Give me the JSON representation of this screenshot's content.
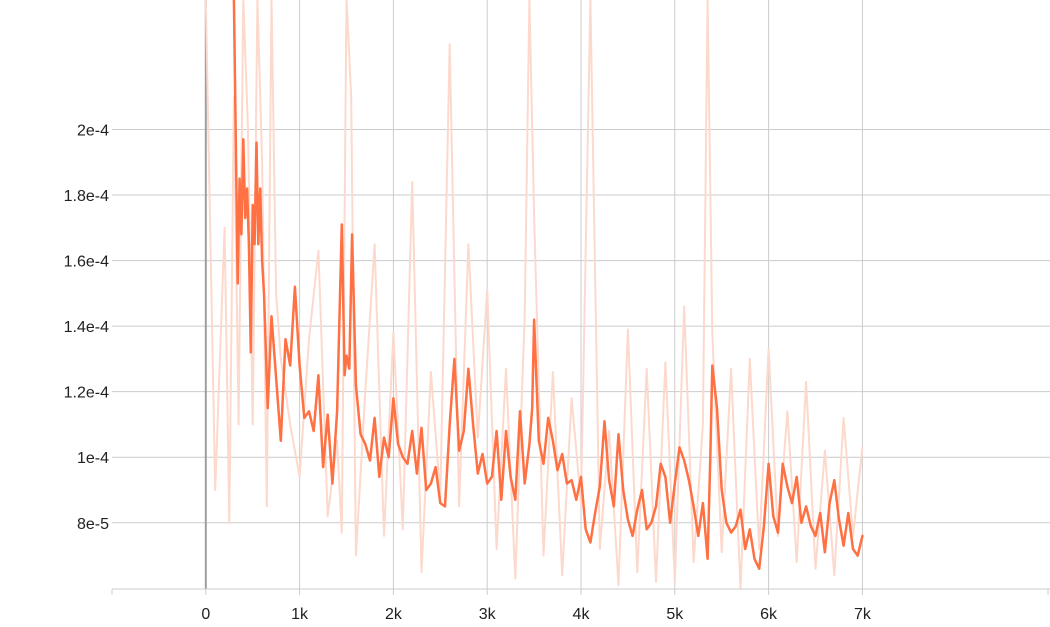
{
  "chart_data": {
    "type": "line",
    "title": "",
    "xlabel": "",
    "ylabel": "",
    "xlim": [
      -1000,
      9000
    ],
    "ylim": [
      5.98e-05,
      0.0002395
    ],
    "x_ticks": [
      {
        "value": 0,
        "label": "0"
      },
      {
        "value": 1000,
        "label": "1k"
      },
      {
        "value": 2000,
        "label": "2k"
      },
      {
        "value": 3000,
        "label": "3k"
      },
      {
        "value": 4000,
        "label": "4k"
      },
      {
        "value": 5000,
        "label": "5k"
      },
      {
        "value": 6000,
        "label": "6k"
      },
      {
        "value": 7000,
        "label": "7k"
      }
    ],
    "y_ticks": [
      {
        "value": 8e-05,
        "label": "8e-5"
      },
      {
        "value": 0.0001,
        "label": "1e-4"
      },
      {
        "value": 0.00012,
        "label": "1.2e-4"
      },
      {
        "value": 0.00014,
        "label": "1.4e-4"
      },
      {
        "value": 0.00016,
        "label": "1.6e-4"
      },
      {
        "value": 0.00018,
        "label": "1.8e-4"
      },
      {
        "value": 0.0002,
        "label": "2e-4"
      }
    ],
    "grid": true,
    "colors": {
      "smoothed": "#ff7043",
      "raw": "#fcd9cc",
      "grid": "#cccccc",
      "zero_line": "#9e9e9e"
    },
    "series": [
      {
        "role": "raw",
        "x": [
          0,
          100,
          200,
          250,
          300,
          350,
          400,
          450,
          500,
          550,
          600,
          650,
          700,
          750,
          800,
          900,
          1000,
          1100,
          1200,
          1300,
          1400,
          1450,
          1500,
          1550,
          1600,
          1700,
          1800,
          1900,
          2000,
          2100,
          2200,
          2300,
          2400,
          2500,
          2600,
          2700,
          2800,
          2900,
          3000,
          3100,
          3200,
          3300,
          3400,
          3450,
          3500,
          3600,
          3700,
          3800,
          3900,
          4000,
          4100,
          4200,
          4300,
          4400,
          4500,
          4600,
          4700,
          4800,
          4900,
          5000,
          5100,
          5200,
          5300,
          5350,
          5400,
          5500,
          5600,
          5700,
          5800,
          5900,
          6000,
          6100,
          6200,
          6300,
          6400,
          6500,
          6600,
          6700,
          6800,
          6900,
          7000
        ],
        "y": [
          0.00024,
          9e-05,
          0.00017,
          8e-05,
          0.00021,
          0.00011,
          0.00024,
          0.0002,
          0.00011,
          0.00024,
          0.00019,
          8.5e-05,
          0.00024,
          0.00015,
          0.00013,
          0.00011,
          9.4e-05,
          0.000136,
          0.000163,
          8.2e-05,
          0.000105,
          7.7e-05,
          0.00024,
          0.00021,
          7e-05,
          0.00012,
          0.000165,
          7.6e-05,
          0.000138,
          7.8e-05,
          0.000184,
          6.5e-05,
          0.000126,
          8.8e-05,
          0.000226,
          8.5e-05,
          0.000165,
          0.000106,
          0.000151,
          7.2e-05,
          0.000127,
          6.3e-05,
          0.000143,
          0.00024,
          0.000174,
          7e-05,
          0.000126,
          6.4e-05,
          0.000118,
          8.6e-05,
          0.00024,
          7.2e-05,
          0.000108,
          6.1e-05,
          0.000139,
          6.5e-05,
          0.000127,
          6.2e-05,
          0.000129,
          6.2e-05,
          0.000146,
          6.8e-05,
          0.00011,
          0.00024,
          0.000138,
          7.1e-05,
          0.000127,
          6e-05,
          0.00013,
          7.2e-05,
          0.000133,
          7.6e-05,
          0.000114,
          6.8e-05,
          0.000123,
          6.6e-05,
          0.000102,
          6.4e-05,
          0.000112,
          7.6e-05,
          0.000103
        ]
      },
      {
        "role": "smoothed",
        "x": [
          300,
          340,
          360,
          380,
          400,
          420,
          440,
          460,
          480,
          500,
          520,
          540,
          560,
          580,
          600,
          620,
          660,
          700,
          740,
          800,
          850,
          900,
          950,
          1000,
          1050,
          1100,
          1150,
          1200,
          1250,
          1300,
          1350,
          1400,
          1450,
          1480,
          1500,
          1530,
          1560,
          1600,
          1650,
          1700,
          1750,
          1800,
          1850,
          1900,
          1950,
          2000,
          2050,
          2100,
          2150,
          2200,
          2250,
          2300,
          2350,
          2400,
          2450,
          2500,
          2550,
          2600,
          2650,
          2700,
          2750,
          2800,
          2850,
          2900,
          2950,
          3000,
          3050,
          3100,
          3150,
          3200,
          3250,
          3300,
          3350,
          3400,
          3450,
          3480,
          3500,
          3550,
          3600,
          3650,
          3700,
          3750,
          3800,
          3850,
          3900,
          3950,
          4000,
          4050,
          4100,
          4150,
          4200,
          4250,
          4300,
          4350,
          4400,
          4450,
          4500,
          4550,
          4600,
          4650,
          4700,
          4750,
          4800,
          4850,
          4900,
          4950,
          5000,
          5050,
          5100,
          5150,
          5200,
          5250,
          5300,
          5350,
          5380,
          5400,
          5450,
          5500,
          5550,
          5600,
          5650,
          5700,
          5750,
          5800,
          5850,
          5900,
          5950,
          6000,
          6050,
          6100,
          6150,
          6200,
          6250,
          6300,
          6350,
          6400,
          6450,
          6500,
          6550,
          6600,
          6650,
          6700,
          6750,
          6800,
          6850,
          6900,
          6950,
          7000
        ],
        "y": [
          0.00024,
          0.000153,
          0.000185,
          0.000168,
          0.000197,
          0.000173,
          0.000182,
          0.000165,
          0.000132,
          0.000177,
          0.000165,
          0.000196,
          0.000165,
          0.000182,
          0.00016,
          0.00015,
          0.000115,
          0.000143,
          0.000128,
          0.000105,
          0.000136,
          0.000128,
          0.000152,
          0.000128,
          0.000112,
          0.000114,
          0.000108,
          0.000125,
          9.7e-05,
          0.000113,
          9.2e-05,
          0.000114,
          0.000171,
          0.000125,
          0.000131,
          0.000127,
          0.000168,
          0.000122,
          0.000107,
          0.000104,
          9.9e-05,
          0.000112,
          9.4e-05,
          0.000106,
          0.0001,
          0.000118,
          0.000104,
          0.0001,
          9.8e-05,
          0.000108,
          9.5e-05,
          0.000109,
          9e-05,
          9.2e-05,
          9.7e-05,
          8.6e-05,
          8.5e-05,
          0.00011,
          0.00013,
          0.000102,
          0.000108,
          0.000127,
          0.00011,
          9.5e-05,
          0.000101,
          9.2e-05,
          9.4e-05,
          0.000108,
          8.7e-05,
          0.000108,
          9.4e-05,
          8.7e-05,
          0.000114,
          9.2e-05,
          0.000104,
          0.000115,
          0.000142,
          0.000105,
          9.8e-05,
          0.000112,
          0.000105,
          9.6e-05,
          0.000101,
          9.2e-05,
          9.3e-05,
          8.7e-05,
          9.4e-05,
          7.8e-05,
          7.4e-05,
          8.3e-05,
          9.1e-05,
          0.000111,
          9.3e-05,
          8.5e-05,
          0.000107,
          9e-05,
          8.1e-05,
          7.6e-05,
          8.4e-05,
          9e-05,
          7.8e-05,
          8e-05,
          8.5e-05,
          9.8e-05,
          9.4e-05,
          8e-05,
          9.2e-05,
          0.000103,
          9.9e-05,
          9.3e-05,
          8.5e-05,
          7.6e-05,
          8.6e-05,
          6.9e-05,
          0.000101,
          0.000128,
          0.000115,
          9e-05,
          8e-05,
          7.7e-05,
          7.9e-05,
          8.4e-05,
          7.2e-05,
          7.8e-05,
          6.9e-05,
          6.6e-05,
          7.9e-05,
          9.8e-05,
          8.2e-05,
          7.7e-05,
          9.8e-05,
          9.1e-05,
          8.6e-05,
          9.4e-05,
          8e-05,
          8.5e-05,
          7.9e-05,
          7.6e-05,
          8.3e-05,
          7.1e-05,
          8.6e-05,
          9.3e-05,
          8.1e-05,
          7.3e-05,
          8.3e-05,
          7.2e-05,
          7e-05,
          7.6e-05
        ]
      }
    ]
  }
}
